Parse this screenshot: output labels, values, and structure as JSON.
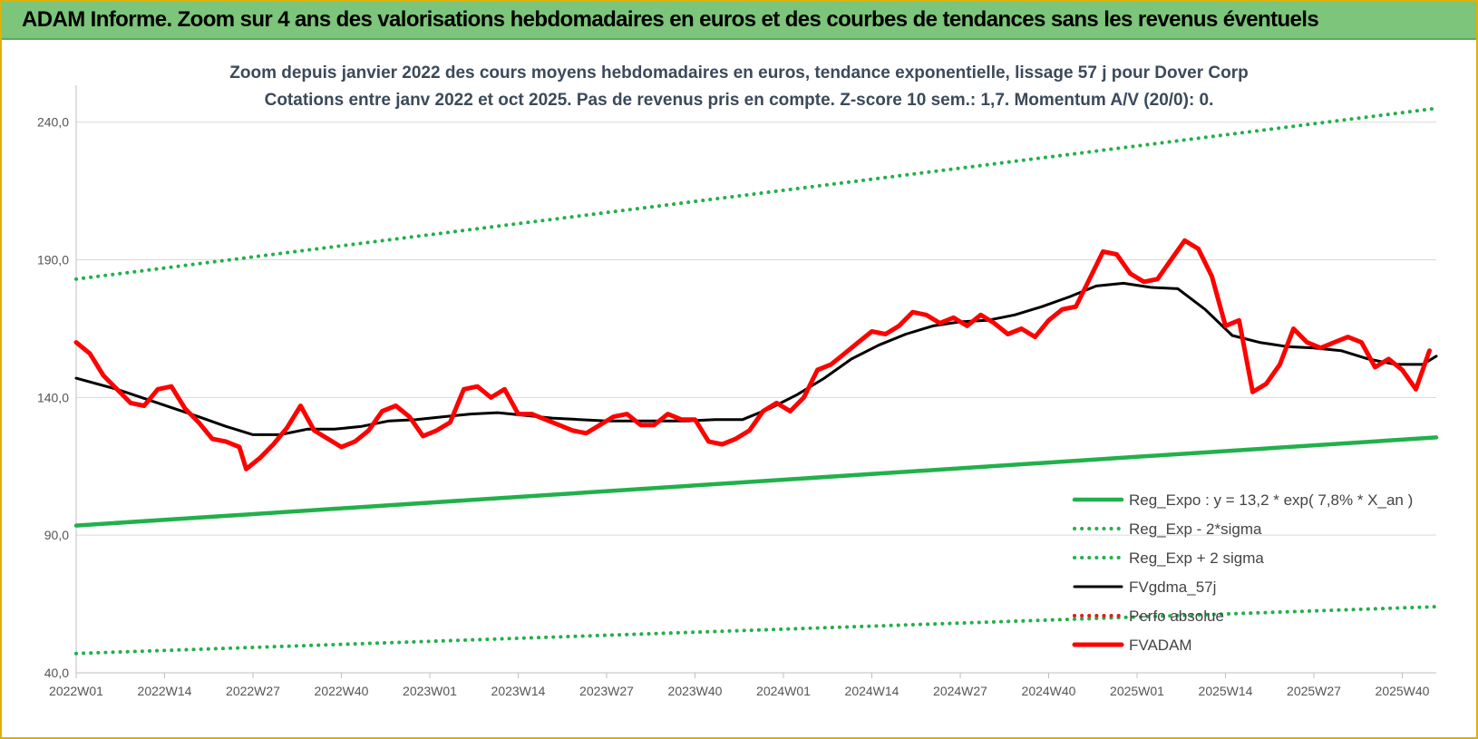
{
  "header": {
    "title": "ADAM Informe. Zoom sur 4 ans des valorisations hebdomadaires en euros et des courbes de tendances sans les revenus éventuels"
  },
  "chart_data": {
    "type": "line",
    "title": "Zoom depuis janvier 2022 des cours moyens hebdomadaires en euros, tendance exponentielle, lissage 57 j pour Dover Corp",
    "subtitle": "Cotations entre janv 2022 et oct 2025. Pas de revenus pris en compte. Z-score 10 sem.: 1,7. Momentum A/V (20/0): 0.",
    "ylim": [
      40,
      260
    ],
    "y_ticks": [
      "40,0",
      "90,0",
      "140,0",
      "190,0",
      "240,0"
    ],
    "y_tick_values": [
      40,
      90,
      140,
      190,
      240
    ],
    "x_ticks": [
      "2022W01",
      "2022W14",
      "2022W27",
      "2022W40",
      "2023W01",
      "2023W14",
      "2023W27",
      "2023W40",
      "2024W01",
      "2024W14",
      "2024W27",
      "2024W40",
      "2025W01",
      "2025W14",
      "2025W27",
      "2025W40"
    ],
    "x_tick_weeks": [
      0,
      13,
      26,
      39,
      52,
      65,
      78,
      91,
      104,
      117,
      130,
      143,
      156,
      169,
      182,
      195
    ],
    "x_range_weeks": [
      0,
      200
    ],
    "grid": "horizontal",
    "legend_position": "bottom-right",
    "series": [
      {
        "name": "Reg_Expo : y = 13,2 * exp( 7,8% * X_an )",
        "color": "#22b04b",
        "style": "solid-thick",
        "x": [
          0,
          200
        ],
        "values": [
          93.5,
          125.5
        ]
      },
      {
        "name": "Reg_Exp - 2*sigma",
        "color": "#22b04b",
        "style": "dotted",
        "x": [
          0,
          200
        ],
        "values": [
          47,
          64
        ]
      },
      {
        "name": "Reg_Exp + 2 sigma",
        "color": "#22b04b",
        "style": "dotted",
        "x": [
          0,
          200
        ],
        "values": [
          183,
          245
        ]
      },
      {
        "name": "FVgdma_57j",
        "color": "#000000",
        "style": "solid",
        "x": [
          0,
          6,
          12,
          18,
          22,
          26,
          30,
          34,
          38,
          42,
          46,
          50,
          54,
          58,
          62,
          66,
          70,
          74,
          78,
          82,
          86,
          90,
          94,
          98,
          102,
          106,
          110,
          114,
          118,
          122,
          126,
          130,
          134,
          138,
          142,
          146,
          150,
          154,
          158,
          162,
          166,
          170,
          174,
          178,
          182,
          186,
          190,
          194,
          198,
          200
        ],
        "values": [
          147,
          143,
          138,
          133,
          129.5,
          126.5,
          126.5,
          128.5,
          128.5,
          129.5,
          131.5,
          132,
          133,
          134,
          134.5,
          133.5,
          132.5,
          132,
          131.5,
          131.5,
          131.5,
          131.5,
          132,
          132,
          136,
          141,
          147,
          154,
          159,
          163,
          166,
          167.5,
          168,
          170,
          173,
          176.5,
          180.5,
          181.5,
          180,
          179.5,
          172,
          162.5,
          160,
          158.5,
          158,
          157,
          154,
          152,
          152,
          155
        ]
      },
      {
        "name": "Perfo absolue",
        "color": "#e31a1c",
        "style": "dotted",
        "x": [],
        "values": []
      },
      {
        "name": "FVADAM",
        "color": "#ff0000",
        "style": "solid-thick",
        "x": [
          0,
          2,
          4,
          6,
          8,
          10,
          12,
          14,
          16,
          18,
          20,
          22,
          24,
          25,
          27,
          29,
          31,
          33,
          35,
          37,
          39,
          41,
          43,
          45,
          47,
          49,
          51,
          53,
          55,
          57,
          59,
          61,
          63,
          65,
          67,
          69,
          71,
          73,
          75,
          77,
          79,
          81,
          83,
          85,
          87,
          89,
          91,
          93,
          95,
          97,
          99,
          101,
          103,
          105,
          107,
          109,
          111,
          113,
          115,
          117,
          119,
          121,
          123,
          125,
          127,
          129,
          131,
          133,
          135,
          137,
          139,
          141,
          143,
          145,
          147,
          149,
          151,
          153,
          155,
          157,
          159,
          161,
          163,
          165,
          167,
          169,
          171,
          173,
          175,
          177,
          179,
          181,
          183,
          185,
          187,
          189,
          191,
          193,
          195,
          197,
          199
        ],
        "values": [
          160,
          156,
          148,
          143,
          138,
          137,
          143,
          144,
          136,
          131,
          125,
          124,
          122,
          114,
          118,
          123,
          129,
          137,
          128,
          125,
          122,
          124,
          128,
          135,
          137,
          133,
          126,
          128,
          131,
          143,
          144,
          140,
          143,
          134,
          134,
          132,
          130,
          128,
          127,
          130,
          133,
          134,
          130,
          130,
          134,
          132,
          132,
          124,
          123,
          125,
          128,
          135,
          138,
          135,
          140,
          150,
          152,
          156,
          160,
          164,
          163,
          166,
          171,
          170,
          167,
          169,
          166,
          170,
          167,
          163,
          165,
          162,
          168,
          172,
          173,
          183,
          193,
          192,
          185,
          182,
          183,
          190,
          197,
          194,
          184,
          166,
          168,
          142,
          145,
          152,
          165,
          160,
          158,
          160,
          162,
          160,
          151,
          154,
          150,
          143,
          157
        ]
      }
    ]
  }
}
